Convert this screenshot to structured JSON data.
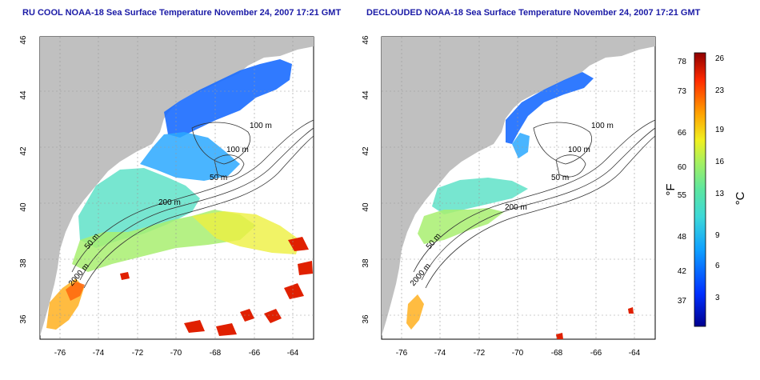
{
  "left_map": {
    "title": "RU COOL NOAA-18 Sea Surface Temperature November 24, 2007 17:21 GMT",
    "contour_labels": [
      "100 m",
      "100 m",
      "50 m",
      "200 m",
      "50 m",
      "2000 m"
    ]
  },
  "right_map": {
    "title": "DECLOUDED NOAA-18 Sea Surface Temperature November 24, 2007 17:21 GMT",
    "contour_labels": [
      "100 m",
      "100 m",
      "50 m",
      "200 m",
      "50 m",
      "2000 m"
    ]
  },
  "axes": {
    "lat_ticks": [
      "46",
      "44",
      "42",
      "40",
      "38",
      "36"
    ],
    "lon_ticks": [
      "-76",
      "-74",
      "-72",
      "-70",
      "-68",
      "-66",
      "-64"
    ]
  },
  "colorbar": {
    "f_label": "°F",
    "c_label": "°C",
    "f_ticks": [
      "78",
      "73",
      "66",
      "60",
      "55",
      "48",
      "42",
      "37"
    ],
    "c_ticks": [
      "26",
      "23",
      "19",
      "16",
      "13",
      "9",
      "6",
      "3"
    ]
  },
  "colors": {
    "land": "#c0c0c0",
    "title": "#1a1aa6",
    "contour": "#333333"
  }
}
